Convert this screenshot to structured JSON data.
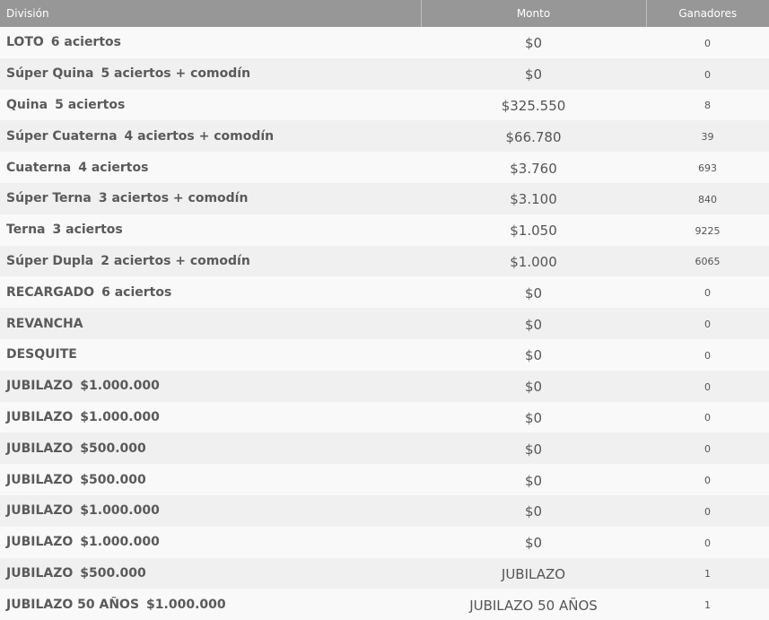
{
  "header": {
    "division": "División",
    "monto": "Monto",
    "ganadores": "Ganadores"
  },
  "rows": [
    {
      "name": "LOTO",
      "detail": "6 aciertos",
      "monto": "$0",
      "ganadores": "0"
    },
    {
      "name": "Súper Quina",
      "detail": "5 aciertos + comodín",
      "monto": "$0",
      "ganadores": "0"
    },
    {
      "name": "Quina",
      "detail": "5 aciertos",
      "monto": "$325.550",
      "ganadores": "8"
    },
    {
      "name": "Súper Cuaterna",
      "detail": "4 aciertos + comodín",
      "monto": "$66.780",
      "ganadores": "39"
    },
    {
      "name": "Cuaterna",
      "detail": "4 aciertos",
      "monto": "$3.760",
      "ganadores": "693"
    },
    {
      "name": "Súper Terna",
      "detail": "3 aciertos + comodín",
      "monto": "$3.100",
      "ganadores": "840"
    },
    {
      "name": "Terna",
      "detail": "3 aciertos",
      "monto": "$1.050",
      "ganadores": "9225"
    },
    {
      "name": "Súper Dupla",
      "detail": "2 aciertos + comodín",
      "monto": "$1.000",
      "ganadores": "6065"
    },
    {
      "name": "RECARGADO",
      "detail": "6 aciertos",
      "monto": "$0",
      "ganadores": "0"
    },
    {
      "name": "REVANCHA",
      "detail": "",
      "monto": "$0",
      "ganadores": "0"
    },
    {
      "name": "DESQUITE",
      "detail": "",
      "monto": "$0",
      "ganadores": "0"
    },
    {
      "name": "JUBILAZO",
      "detail": "$1.000.000",
      "monto": "$0",
      "ganadores": "0"
    },
    {
      "name": "JUBILAZO",
      "detail": "$1.000.000",
      "monto": "$0",
      "ganadores": "0"
    },
    {
      "name": "JUBILAZO",
      "detail": "$500.000",
      "monto": "$0",
      "ganadores": "0"
    },
    {
      "name": "JUBILAZO",
      "detail": "$500.000",
      "monto": "$0",
      "ganadores": "0"
    },
    {
      "name": "JUBILAZO",
      "detail": "$1.000.000",
      "monto": "$0",
      "ganadores": "0"
    },
    {
      "name": "JUBILAZO",
      "detail": "$1.000.000",
      "monto": "$0",
      "ganadores": "0"
    },
    {
      "name": "JUBILAZO",
      "detail": "$500.000",
      "monto": "JUBILAZO",
      "ganadores": "1"
    },
    {
      "name": "JUBILAZO 50 AÑOS",
      "detail": "$1.000.000",
      "monto": "JUBILAZO 50 AÑOS",
      "ganadores": "1"
    }
  ]
}
